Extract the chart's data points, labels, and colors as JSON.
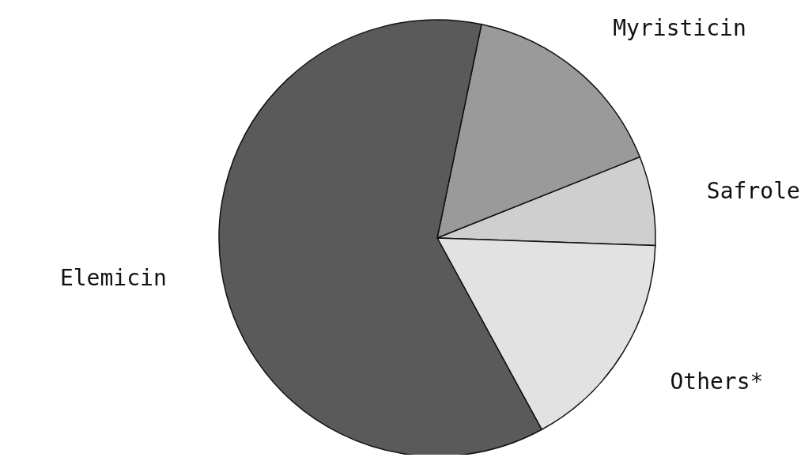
{
  "chart_data": {
    "type": "pie",
    "categories": [
      "Myristicin",
      "Safrole",
      "Others*",
      "Elemicin"
    ],
    "values": [
      15.7,
      6.6,
      16.5,
      61.2
    ],
    "colors": [
      "#9a9a9a",
      "#cfcfcf",
      "#e2e2e2",
      "#5a5a5a"
    ],
    "legend": false
  }
}
